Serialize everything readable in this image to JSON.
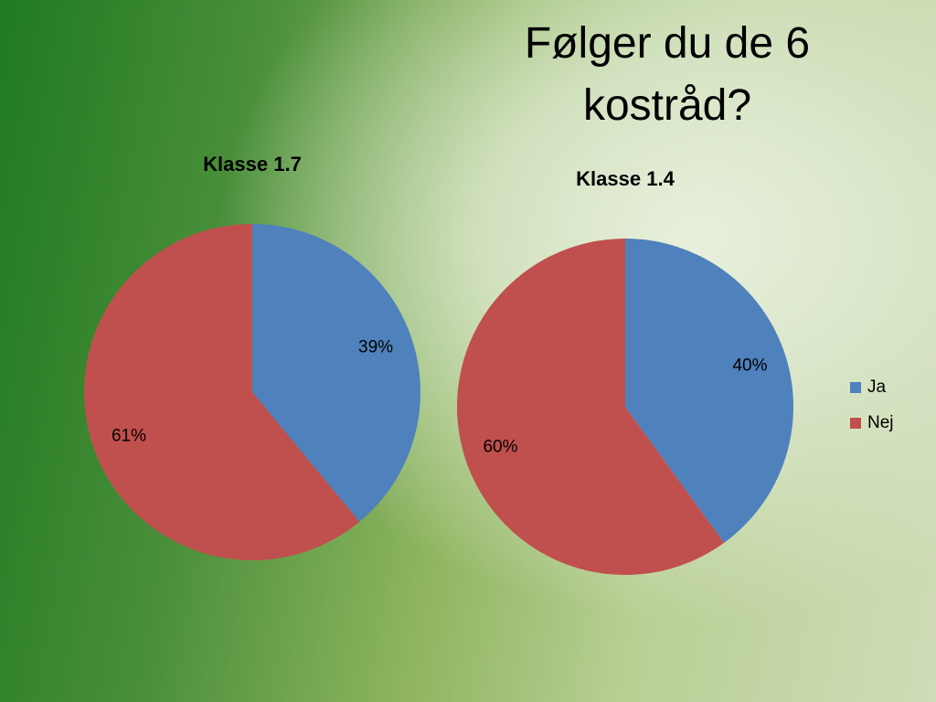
{
  "title": "Følger du de 6 kostråd?",
  "chart_data": [
    {
      "type": "pie",
      "title": "Klasse 1.7",
      "categories": [
        "Ja",
        "Nej"
      ],
      "values": [
        39,
        61
      ],
      "value_labels": [
        "39%",
        "61%"
      ],
      "colors": [
        "#4f81bd",
        "#c0504d"
      ]
    },
    {
      "type": "pie",
      "title": "Klasse 1.4",
      "categories": [
        "Ja",
        "Nej"
      ],
      "values": [
        40,
        60
      ],
      "value_labels": [
        "40%",
        "60%"
      ],
      "colors": [
        "#4f81bd",
        "#c0504d"
      ],
      "legend": "right"
    }
  ]
}
